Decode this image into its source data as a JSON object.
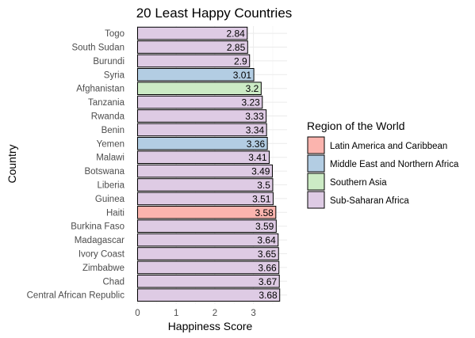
{
  "chart_data": {
    "type": "bar",
    "orientation": "horizontal",
    "title": "20 Least Happy Countries",
    "xlabel": "Happiness Score",
    "ylabel": "Country",
    "xlim": [
      0,
      3.7
    ],
    "x_ticks": [
      0,
      1,
      2,
      3
    ],
    "grid": true,
    "legend_position": "right",
    "legend_title": "Region of the World",
    "regions": [
      {
        "name": "Latin America and Caribbean",
        "color": "#fbb4ae"
      },
      {
        "name": "Middle East and Northern Africa",
        "color": "#b3cde3"
      },
      {
        "name": "Southern Asia",
        "color": "#ccebc5"
      },
      {
        "name": "Sub-Saharan Africa",
        "color": "#decbe4"
      }
    ],
    "bars": [
      {
        "country": "Togo",
        "value": 2.84,
        "label": "2.84",
        "region": "Sub-Saharan Africa"
      },
      {
        "country": "South Sudan",
        "value": 2.85,
        "label": "2.85",
        "region": "Sub-Saharan Africa"
      },
      {
        "country": "Burundi",
        "value": 2.9,
        "label": "2.9",
        "region": "Sub-Saharan Africa"
      },
      {
        "country": "Syria",
        "value": 3.01,
        "label": "3.01",
        "region": "Middle East and Northern Africa"
      },
      {
        "country": "Afghanistan",
        "value": 3.2,
        "label": "3.2",
        "region": "Southern Asia"
      },
      {
        "country": "Tanzania",
        "value": 3.23,
        "label": "3.23",
        "region": "Sub-Saharan Africa"
      },
      {
        "country": "Rwanda",
        "value": 3.33,
        "label": "3.33",
        "region": "Sub-Saharan Africa"
      },
      {
        "country": "Benin",
        "value": 3.34,
        "label": "3.34",
        "region": "Sub-Saharan Africa"
      },
      {
        "country": "Yemen",
        "value": 3.36,
        "label": "3.36",
        "region": "Middle East and Northern Africa"
      },
      {
        "country": "Malawi",
        "value": 3.41,
        "label": "3.41",
        "region": "Sub-Saharan Africa"
      },
      {
        "country": "Botswana",
        "value": 3.49,
        "label": "3.49",
        "region": "Sub-Saharan Africa"
      },
      {
        "country": "Liberia",
        "value": 3.5,
        "label": "3.5",
        "region": "Sub-Saharan Africa"
      },
      {
        "country": "Guinea",
        "value": 3.51,
        "label": "3.51",
        "region": "Sub-Saharan Africa"
      },
      {
        "country": "Haiti",
        "value": 3.58,
        "label": "3.58",
        "region": "Latin America and Caribbean"
      },
      {
        "country": "Burkina Faso",
        "value": 3.59,
        "label": "3.59",
        "region": "Sub-Saharan Africa"
      },
      {
        "country": "Madagascar",
        "value": 3.64,
        "label": "3.64",
        "region": "Sub-Saharan Africa"
      },
      {
        "country": "Ivory Coast",
        "value": 3.65,
        "label": "3.65",
        "region": "Sub-Saharan Africa"
      },
      {
        "country": "Zimbabwe",
        "value": 3.66,
        "label": "3.66",
        "region": "Sub-Saharan Africa"
      },
      {
        "country": "Chad",
        "value": 3.67,
        "label": "3.67",
        "region": "Sub-Saharan Africa"
      },
      {
        "country": "Central African Republic",
        "value": 3.68,
        "label": "3.68",
        "region": "Sub-Saharan Africa"
      }
    ]
  }
}
